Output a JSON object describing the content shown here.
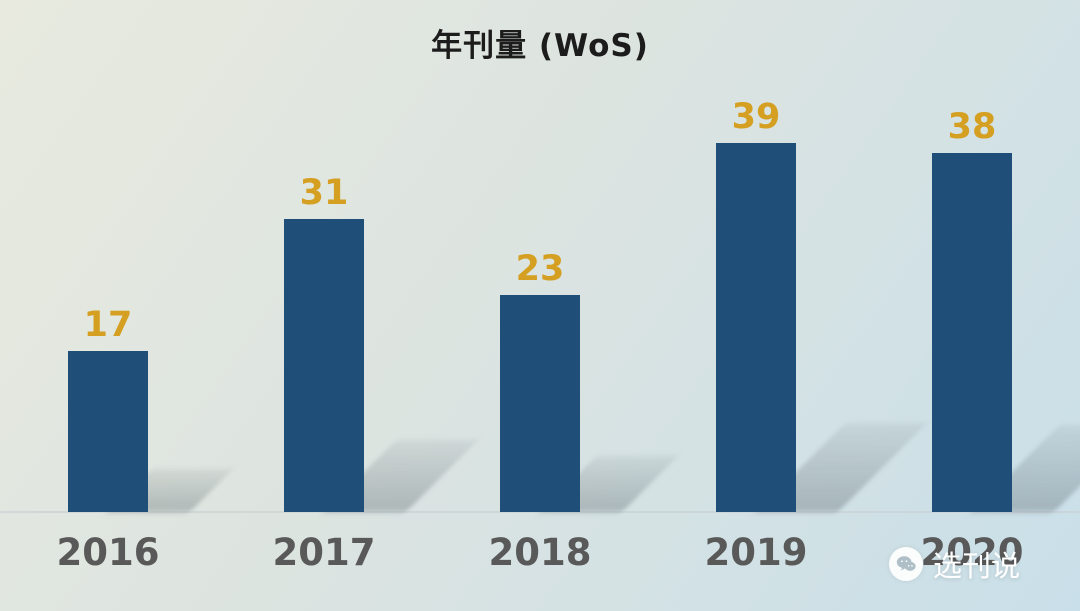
{
  "chart_data": {
    "type": "bar",
    "title": "年刊量 (WoS)",
    "categories": [
      "2016",
      "2017",
      "2018",
      "2019",
      "2020"
    ],
    "values": [
      17,
      31,
      23,
      39,
      38
    ],
    "xlabel": "",
    "ylabel": "",
    "ylim": [
      0,
      42
    ],
    "grid": false,
    "legend": false,
    "bar_color": "#1f4e79",
    "value_label_color": "#d5a021",
    "category_label_color": "#595959",
    "background_gradient": [
      "#e8eadf",
      "#c9dfe9"
    ]
  },
  "watermark": {
    "text": "选刊说",
    "icon": "wechat-icon"
  }
}
